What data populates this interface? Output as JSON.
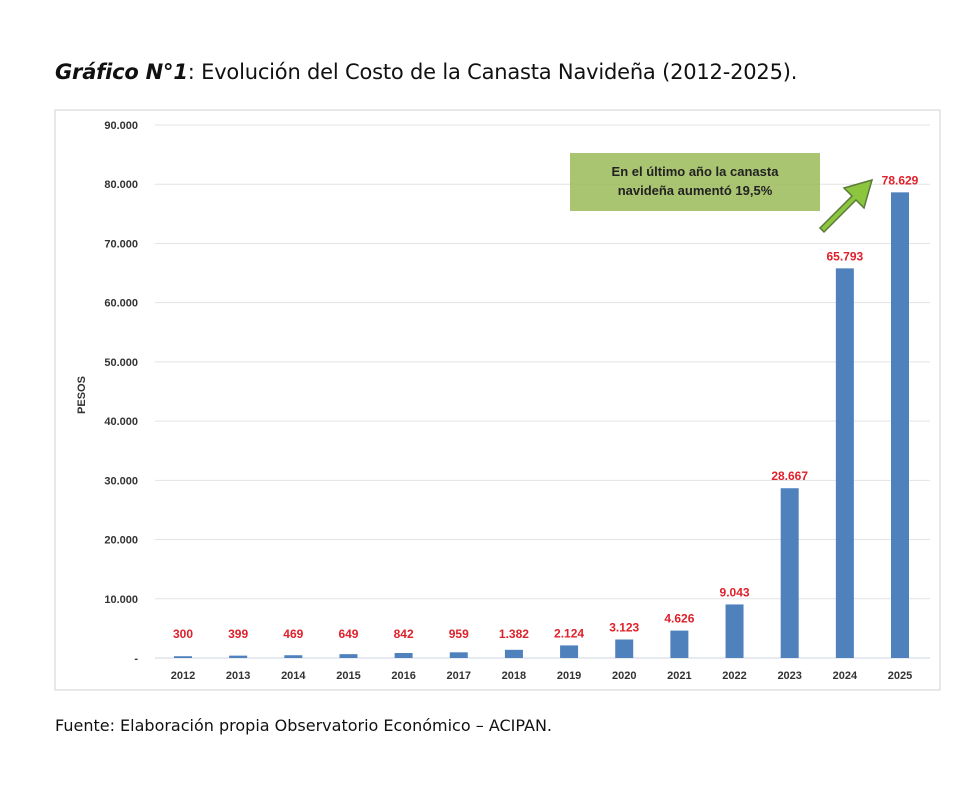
{
  "title": {
    "bold_part": "Gráfico N°1",
    "rest": ": Evolución del Costo de la Canasta Navideña (2012-2025)."
  },
  "source": "Fuente: Elaboración propia Observatorio Económico – ACIPAN.",
  "chart_data": {
    "type": "bar",
    "title": "",
    "xlabel": "",
    "ylabel": "PESOS",
    "ylim": [
      0,
      90000
    ],
    "yticks": [
      "-",
      "10.000",
      "20.000",
      "30.000",
      "40.000",
      "50.000",
      "60.000",
      "70.000",
      "80.000",
      "90.000"
    ],
    "grid": true,
    "categories": [
      "2012",
      "2013",
      "2014",
      "2015",
      "2016",
      "2017",
      "2018",
      "2019",
      "2020",
      "2021",
      "2022",
      "2023",
      "2024",
      "2025"
    ],
    "values": [
      300,
      399,
      469,
      649,
      842,
      959,
      1382,
      2124,
      3123,
      4626,
      9043,
      28667,
      65793,
      78629
    ],
    "data_labels": [
      "300",
      "399",
      "469",
      "649",
      "842",
      "959",
      "1.382",
      "2.124",
      "3.123",
      "4.626",
      "9.043",
      "28.667",
      "65.793",
      "78.629"
    ],
    "annotation": {
      "lines": [
        "En el último año la canasta",
        "navideña aumentó 19,5%"
      ]
    },
    "colors": {
      "bar": "#4f81bd",
      "data_label": "#e0202a",
      "annotation_box": "#9bbb59",
      "arrow": "#8cc63f"
    }
  }
}
